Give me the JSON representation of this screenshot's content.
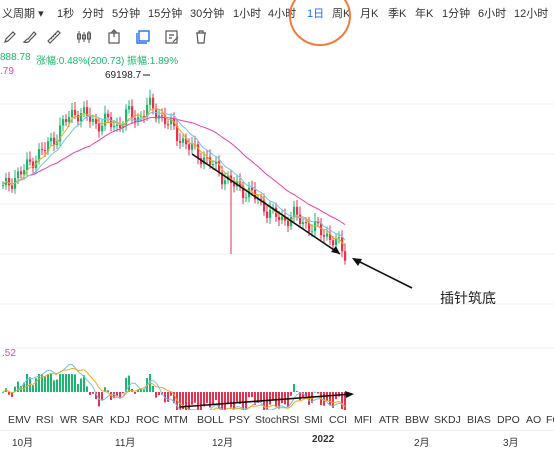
{
  "periods": [
    {
      "label": "义周期",
      "has_dropdown": true
    },
    {
      "label": "1秒"
    },
    {
      "label": "分时"
    },
    {
      "label": "5分钟"
    },
    {
      "label": "15分钟"
    },
    {
      "label": "30分钟"
    },
    {
      "label": "1小时"
    },
    {
      "label": "4小时"
    },
    {
      "label": "1日",
      "active": true
    },
    {
      "label": "周K"
    },
    {
      "label": "月K"
    },
    {
      "label": "季K"
    },
    {
      "label": "年K"
    },
    {
      "label": "1分钟"
    },
    {
      "label": "6小时"
    },
    {
      "label": "12小时"
    }
  ],
  "period_dropdown_icon": "▾",
  "tools": [
    "pencil-icon",
    "brush-icon",
    "ruler-icon",
    "candles-icon",
    "upload-icon",
    "select-icon",
    "edit-icon",
    "trash-icon"
  ],
  "info_bar": {
    "price_partial": "888.78",
    "change_label": "涨幅:0.48%(200.73)",
    "amplitude_label": "振幅:1.89%",
    "left_value": ".79",
    "peak_label": "69198.7"
  },
  "macd_value": ".52",
  "annotation": "插针筑底",
  "indicator_tabs": [
    "EMV",
    "RSI",
    "WR",
    "SAR",
    "KDJ",
    "ROC",
    "MTM",
    "BOLL",
    "PSY",
    "StochRSI",
    "SMI",
    "CCI",
    "MFI",
    "ATR",
    "BBW",
    "SKDJ",
    "BIAS",
    "DPO",
    "AO",
    "FO"
  ],
  "months": [
    {
      "label": "10月"
    },
    {
      "label": "11月"
    },
    {
      "label": "12月"
    },
    {
      "label": "2022",
      "bold": true
    },
    {
      "label": "2月"
    },
    {
      "label": "3月"
    }
  ],
  "colors": {
    "up": "#19b86e",
    "down": "#e8304f",
    "ma_fast": "#f3a623",
    "ma_slow": "#e73fae",
    "ma_mid": "#6ec6e8",
    "active": "#1e6ff1",
    "highlight": "#f07b3a"
  },
  "chart_data": {
    "type": "candlestick",
    "price_scale_label_peak": 69198.7,
    "candles_close_trend": [
      40,
      44,
      47,
      52,
      55,
      60,
      66,
      70,
      68,
      65,
      66,
      64,
      69,
      67,
      72,
      69,
      65,
      60,
      56,
      53,
      50,
      46,
      42,
      40,
      38,
      34,
      30,
      28,
      30,
      27,
      25,
      23,
      20,
      15
    ],
    "note": "relative trend only; the screenshot has no printed price axis"
  }
}
